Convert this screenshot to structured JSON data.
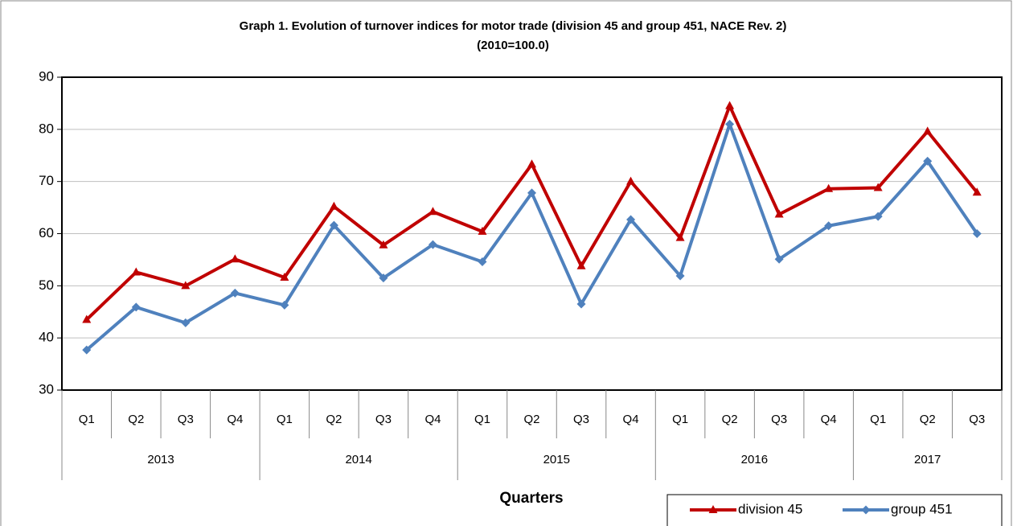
{
  "chart_data": {
    "type": "line",
    "title": "Graph 1. Evolution of turnover indices for motor trade (division 45 and group 451, NACE Rev. 2)",
    "subtitle": "(2010=100.0)",
    "x_label": "Quarters",
    "categories": [
      "Q1",
      "Q2",
      "Q3",
      "Q4",
      "Q1",
      "Q2",
      "Q3",
      "Q4",
      "Q1",
      "Q2",
      "Q3",
      "Q4",
      "Q1",
      "Q2",
      "Q3",
      "Q4",
      "Q1",
      "Q2",
      "Q3"
    ],
    "years": [
      "2013",
      "2014",
      "2015",
      "2016",
      "2017"
    ],
    "series": [
      {
        "name": "division 45",
        "color": "#c00000",
        "marker": "triangle",
        "values": [
          43.5,
          52.6,
          50.0,
          55.1,
          51.6,
          65.2,
          57.8,
          64.2,
          60.4,
          73.3,
          53.8,
          70.0,
          59.2,
          84.5,
          63.7,
          68.6,
          68.8,
          79.6,
          67.9
        ]
      },
      {
        "name": "group 451",
        "color": "#4f81bd",
        "marker": "diamond",
        "values": [
          37.7,
          45.9,
          42.9,
          48.6,
          46.3,
          61.6,
          51.5,
          57.9,
          54.6,
          67.8,
          46.5,
          62.7,
          51.9,
          81.0,
          55.1,
          61.5,
          63.3,
          73.9,
          60.0
        ]
      }
    ],
    "ylim": [
      30,
      90
    ],
    "yticks": [
      30,
      40,
      50,
      60,
      70,
      80,
      90
    ],
    "grid": true,
    "legend": "bottom-right"
  }
}
